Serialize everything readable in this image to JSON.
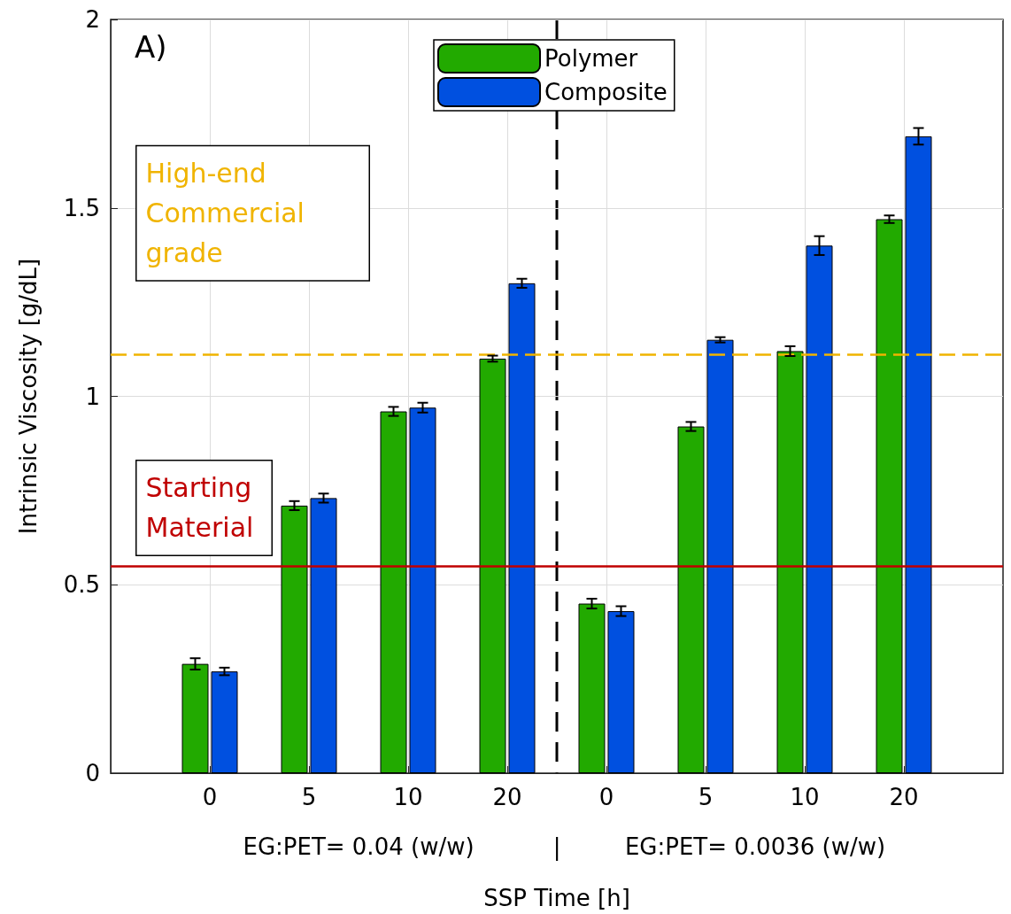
{
  "chart_data": {
    "type": "bar",
    "xlabel": "SSP Time [h]",
    "ylabel": "Intrinsic Viscosity [g/dL]",
    "categories": [
      "0",
      "5",
      "10",
      "20",
      "0",
      "5",
      "10",
      "20"
    ],
    "series": [
      {
        "name": "Polymer",
        "color": "#22aa00",
        "values": [
          0.29,
          0.71,
          0.96,
          1.1,
          0.45,
          0.92,
          1.12,
          1.47
        ],
        "errors": [
          0.015,
          0.012,
          0.012,
          0.008,
          0.013,
          0.012,
          0.013,
          0.01
        ]
      },
      {
        "name": "Composite",
        "color": "#0050e0",
        "values": [
          0.27,
          0.73,
          0.97,
          1.3,
          0.43,
          1.15,
          1.4,
          1.69
        ],
        "errors": [
          0.01,
          0.012,
          0.013,
          0.012,
          0.013,
          0.007,
          0.025,
          0.022
        ]
      }
    ],
    "ylim": [
      0,
      2
    ],
    "yticks": [
      0,
      0.5,
      1,
      1.5,
      2
    ],
    "ref_lines": [
      {
        "axis": "y",
        "value": 0.55,
        "label": "Starting Material",
        "color": "#c00000",
        "line_style": "solid"
      },
      {
        "axis": "y",
        "value": 1.11,
        "label": "High-end Commercial grade",
        "color": "#f0b400",
        "line_style": "dashed"
      }
    ],
    "annotations": [
      "A)",
      "EG:PET= 0.04 (w/w)",
      "|",
      "EG:PET= 0.0036 (w/w)"
    ],
    "grid": true,
    "legend": "top"
  }
}
